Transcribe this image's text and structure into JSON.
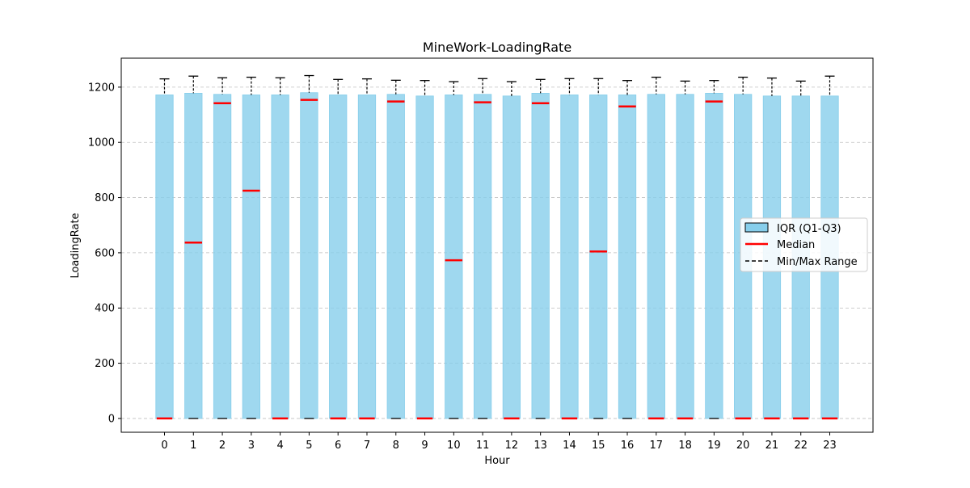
{
  "chart_data": {
    "type": "box",
    "title": "MineWork-LoadingRate",
    "xlabel": "Hour",
    "ylabel": "LoadingRate",
    "ylim": [
      -50,
      1305
    ],
    "yticks": [
      0,
      200,
      400,
      600,
      800,
      1000,
      1200
    ],
    "grid": "y-dashed",
    "legend_position": "center-right",
    "legend": [
      {
        "label": "IQR (Q1-Q3)",
        "kind": "box"
      },
      {
        "label": "Median",
        "kind": "median"
      },
      {
        "label": "Min/Max Range",
        "kind": "range"
      }
    ],
    "categories": [
      "0",
      "1",
      "2",
      "3",
      "4",
      "5",
      "6",
      "7",
      "8",
      "9",
      "10",
      "11",
      "12",
      "13",
      "14",
      "15",
      "16",
      "17",
      "18",
      "19",
      "20",
      "21",
      "22",
      "23"
    ],
    "series": [
      {
        "x": "0",
        "min": 0,
        "q1": 0,
        "median": 0,
        "q3": 1172,
        "max": 1230
      },
      {
        "x": "1",
        "min": 0,
        "q1": 0,
        "median": 637,
        "q3": 1178,
        "max": 1240
      },
      {
        "x": "2",
        "min": 0,
        "q1": 0,
        "median": 1142,
        "q3": 1174,
        "max": 1234
      },
      {
        "x": "3",
        "min": 0,
        "q1": 0,
        "median": 825,
        "q3": 1172,
        "max": 1236
      },
      {
        "x": "4",
        "min": 0,
        "q1": 0,
        "median": 0,
        "q3": 1172,
        "max": 1234
      },
      {
        "x": "5",
        "min": 0,
        "q1": 0,
        "median": 1154,
        "q3": 1180,
        "max": 1242
      },
      {
        "x": "6",
        "min": 0,
        "q1": 0,
        "median": 0,
        "q3": 1172,
        "max": 1228
      },
      {
        "x": "7",
        "min": 0,
        "q1": 0,
        "median": 0,
        "q3": 1172,
        "max": 1230
      },
      {
        "x": "8",
        "min": 0,
        "q1": 0,
        "median": 1148,
        "q3": 1174,
        "max": 1225
      },
      {
        "x": "9",
        "min": 0,
        "q1": 0,
        "median": 0,
        "q3": 1168,
        "max": 1224
      },
      {
        "x": "10",
        "min": 0,
        "q1": 0,
        "median": 573,
        "q3": 1172,
        "max": 1220
      },
      {
        "x": "11",
        "min": 0,
        "q1": 0,
        "median": 1145,
        "q3": 1174,
        "max": 1231
      },
      {
        "x": "12",
        "min": 0,
        "q1": 0,
        "median": 0,
        "q3": 1168,
        "max": 1220
      },
      {
        "x": "13",
        "min": 0,
        "q1": 0,
        "median": 1142,
        "q3": 1178,
        "max": 1228
      },
      {
        "x": "14",
        "min": 0,
        "q1": 0,
        "median": 0,
        "q3": 1172,
        "max": 1231
      },
      {
        "x": "15",
        "min": 0,
        "q1": 0,
        "median": 605,
        "q3": 1172,
        "max": 1231
      },
      {
        "x": "16",
        "min": 0,
        "q1": 0,
        "median": 1130,
        "q3": 1172,
        "max": 1224
      },
      {
        "x": "17",
        "min": 0,
        "q1": 0,
        "median": 0,
        "q3": 1174,
        "max": 1236
      },
      {
        "x": "18",
        "min": 0,
        "q1": 0,
        "median": 0,
        "q3": 1174,
        "max": 1222
      },
      {
        "x": "19",
        "min": 0,
        "q1": 0,
        "median": 1148,
        "q3": 1178,
        "max": 1224
      },
      {
        "x": "20",
        "min": 0,
        "q1": 0,
        "median": 0,
        "q3": 1174,
        "max": 1236
      },
      {
        "x": "21",
        "min": 0,
        "q1": 0,
        "median": 0,
        "q3": 1168,
        "max": 1233
      },
      {
        "x": "22",
        "min": 0,
        "q1": 0,
        "median": 0,
        "q3": 1168,
        "max": 1222
      },
      {
        "x": "23",
        "min": 0,
        "q1": 0,
        "median": 0,
        "q3": 1168,
        "max": 1240
      }
    ],
    "colors": {
      "box_fill": "#87CEEB",
      "box_edge": "#87CEEB",
      "median": "#ff0000",
      "range": "#000000",
      "grid": "#b0b0b0"
    }
  }
}
